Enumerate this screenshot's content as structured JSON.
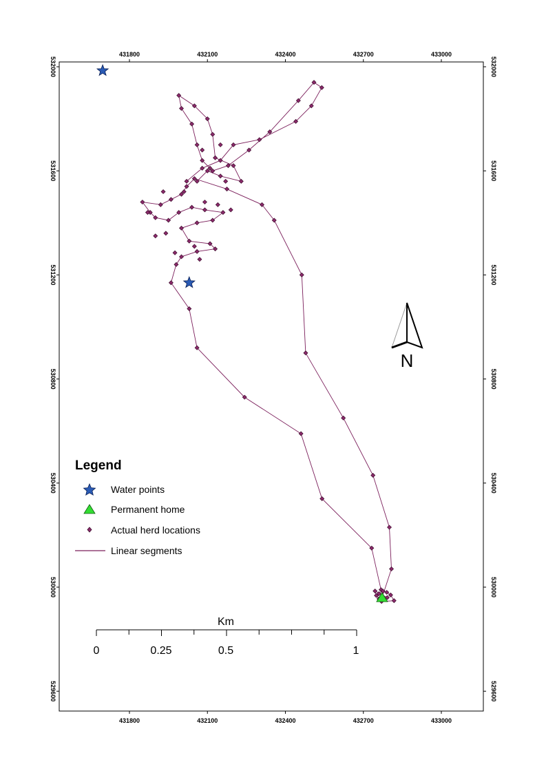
{
  "map": {
    "x_ticks": [
      "431800",
      "432100",
      "432400",
      "432700",
      "433000"
    ],
    "y_ticks": [
      "532000",
      "531600",
      "531200",
      "530800",
      "530400",
      "530000",
      "529600"
    ],
    "colors": {
      "track": "#7a1d5a",
      "point_fill": "#8b2a6b",
      "point_stroke": "#3a0a2a",
      "water_point": "#2a5bb5",
      "home": "#33dd33"
    },
    "water_points": [
      [
        431697,
        531985
      ],
      [
        432030,
        531170
      ]
    ],
    "home": [
      432772,
      529960
    ],
    "track": [
      [
        432772,
        529960
      ],
      [
        432808,
        530070
      ],
      [
        432800,
        530230
      ],
      [
        432737,
        530430
      ],
      [
        432623,
        530650
      ],
      [
        432478,
        530900
      ],
      [
        432463,
        531200
      ],
      [
        432357,
        531410
      ],
      [
        432310,
        531470
      ],
      [
        432175,
        531530
      ],
      [
        432050,
        531570
      ],
      [
        432020,
        531540
      ],
      [
        432000,
        531510
      ],
      [
        431960,
        531490
      ],
      [
        431920,
        531470
      ],
      [
        431850,
        531480
      ],
      [
        431880,
        531440
      ],
      [
        431900,
        531420
      ],
      [
        431950,
        531410
      ],
      [
        431990,
        531440
      ],
      [
        432040,
        531460
      ],
      [
        432090,
        531450
      ],
      [
        432160,
        531440
      ],
      [
        432120,
        531410
      ],
      [
        432060,
        531400
      ],
      [
        432000,
        531380
      ],
      [
        432030,
        531330
      ],
      [
        432110,
        531320
      ],
      [
        432130,
        531300
      ],
      [
        432060,
        531290
      ],
      [
        432000,
        531270
      ],
      [
        431980,
        531240
      ],
      [
        431960,
        531170
      ],
      [
        432030,
        531070
      ],
      [
        432060,
        530920
      ],
      [
        432243,
        530730
      ],
      [
        432460,
        530590
      ],
      [
        432541,
        530340
      ],
      [
        432732,
        530150
      ],
      [
        432768,
        529990
      ]
    ],
    "track2": [
      [
        432020,
        531560
      ],
      [
        432080,
        531610
      ],
      [
        432150,
        531640
      ],
      [
        432200,
        531700
      ],
      [
        432300,
        531720
      ],
      [
        432440,
        531790
      ],
      [
        432500,
        531850
      ],
      [
        432540,
        531920
      ],
      [
        432510,
        531940
      ],
      [
        432450,
        531870
      ],
      [
        432340,
        531750
      ],
      [
        432260,
        531680
      ],
      [
        432180,
        531620
      ],
      [
        432120,
        531600
      ],
      [
        432080,
        531640
      ],
      [
        432060,
        531700
      ],
      [
        432040,
        531780
      ],
      [
        432000,
        531840
      ],
      [
        431990,
        531890
      ],
      [
        432050,
        531850
      ],
      [
        432100,
        531800
      ],
      [
        432120,
        531740
      ],
      [
        432130,
        531650
      ],
      [
        432200,
        531620
      ],
      [
        432230,
        531560
      ],
      [
        432150,
        531580
      ],
      [
        432100,
        531600
      ],
      [
        432060,
        531560
      ]
    ],
    "home_cluster": [
      [
        432760,
        529975
      ],
      [
        432775,
        529985
      ],
      [
        432790,
        529980
      ],
      [
        432805,
        529970
      ],
      [
        432818,
        529948
      ],
      [
        432770,
        529945
      ],
      [
        432750,
        529968
      ],
      [
        432745,
        529985
      ],
      [
        432792,
        529960
      ],
      [
        432760,
        529955
      ]
    ],
    "extra_points": [
      [
        431900,
        531350
      ],
      [
        431940,
        531360
      ],
      [
        432010,
        531520
      ],
      [
        432090,
        531480
      ],
      [
        432140,
        531470
      ],
      [
        432190,
        531450
      ],
      [
        432080,
        531680
      ],
      [
        432170,
        531560
      ],
      [
        432150,
        531700
      ],
      [
        432110,
        531610
      ],
      [
        432050,
        531310
      ],
      [
        432070,
        531260
      ],
      [
        431975,
        531285
      ],
      [
        431930,
        531520
      ],
      [
        431870,
        531440
      ]
    ]
  },
  "legend": {
    "title": "Legend",
    "items": [
      {
        "symbol": "star",
        "label": "Water points"
      },
      {
        "symbol": "triangle",
        "label": "Permanent home"
      },
      {
        "symbol": "point",
        "label": "Actual herd locations"
      },
      {
        "symbol": "line",
        "label": "Linear segments"
      }
    ]
  },
  "scalebar": {
    "unit": "Km",
    "labels": [
      "0",
      "0.25",
      "0.5",
      "1"
    ],
    "label_values": [
      0,
      0.25,
      0.5,
      1
    ]
  },
  "north_arrow": {
    "label": "N"
  }
}
